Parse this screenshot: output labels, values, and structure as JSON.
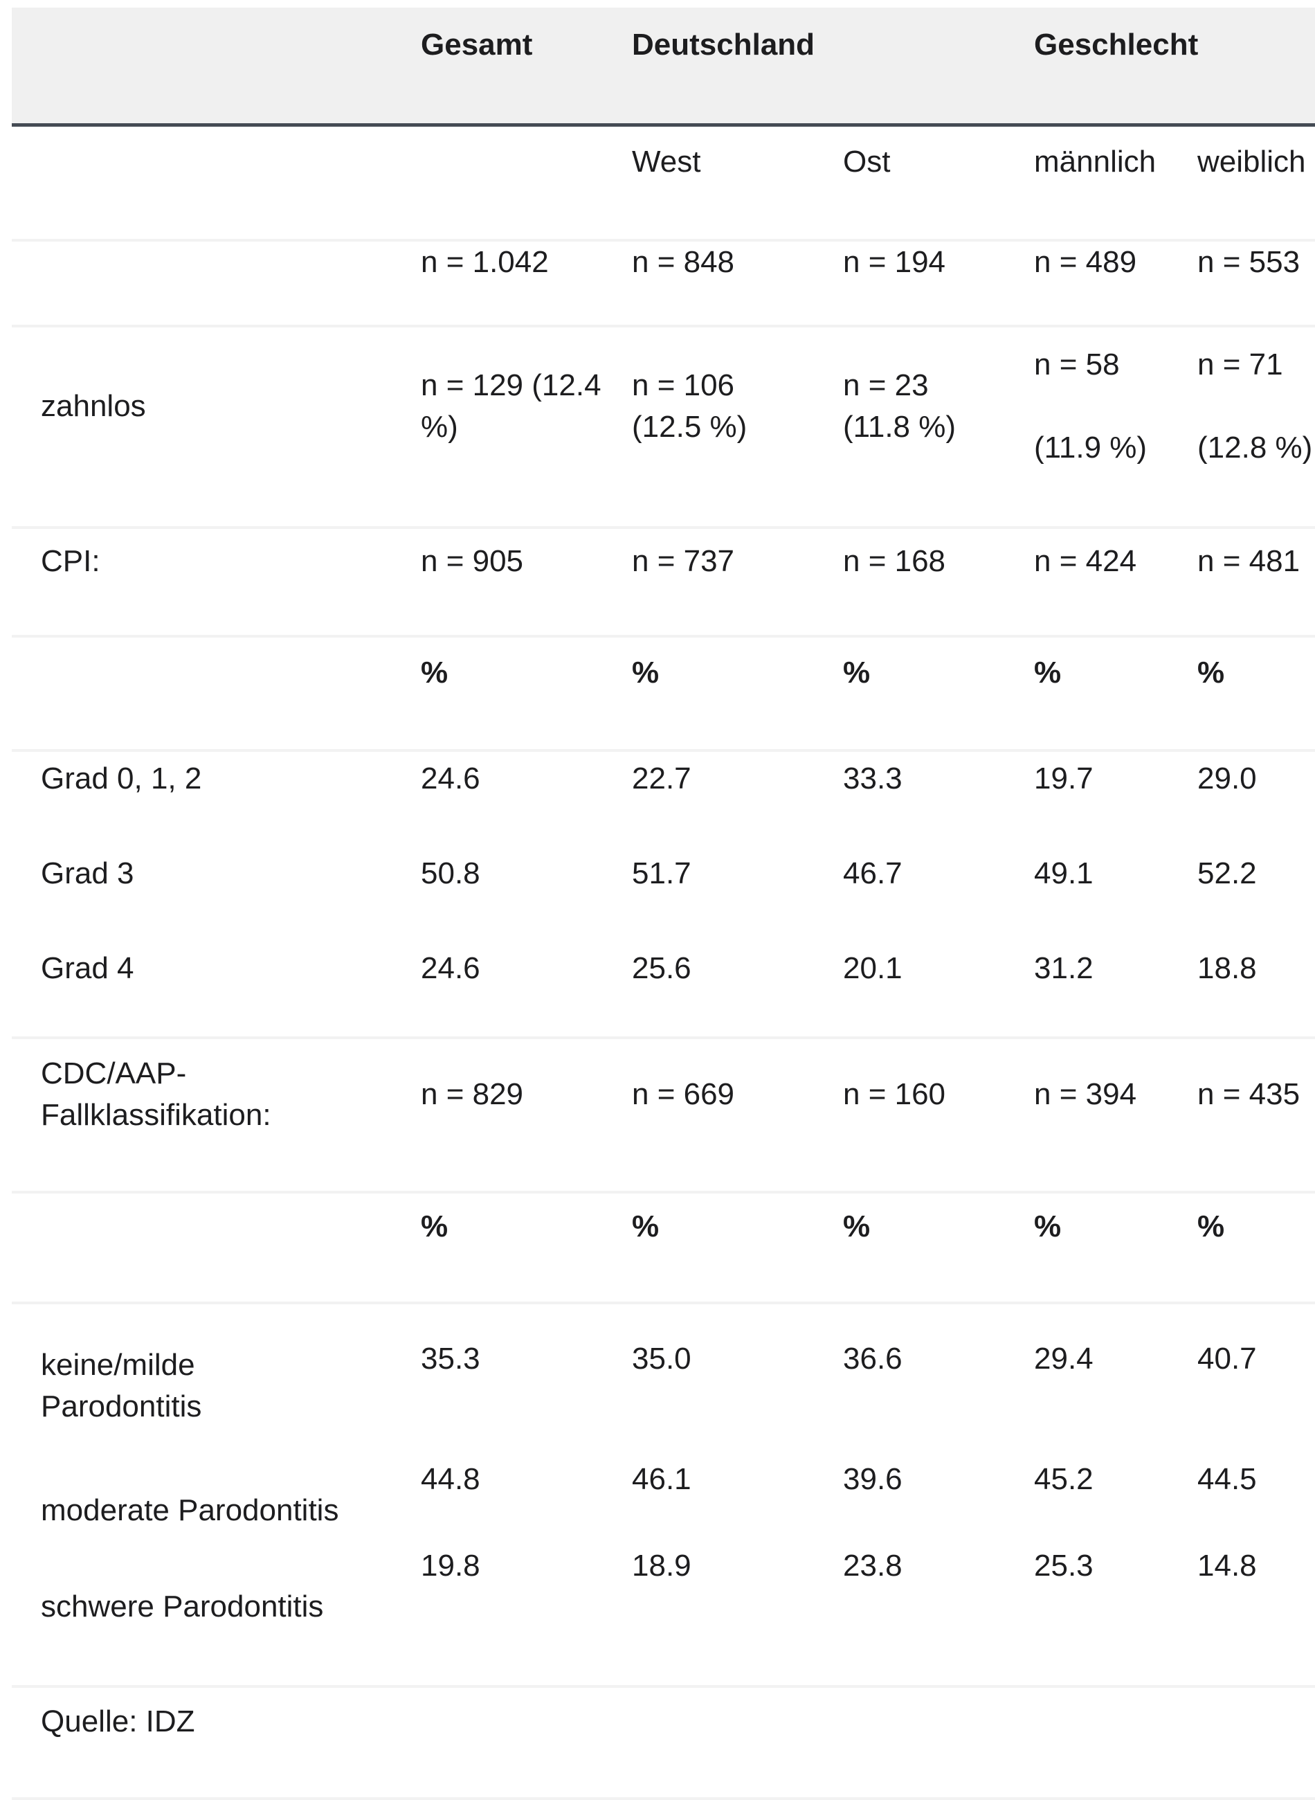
{
  "colors": {
    "header_bg": "#f0f0f0",
    "header_rule": "#444b54",
    "divider": "#f2f2f2",
    "text": "#1d1d1f"
  },
  "table": {
    "group_headers": [
      {
        "id": "gesamt",
        "label": "Gesamt"
      },
      {
        "id": "deutschland",
        "label": "Deutschland"
      },
      {
        "id": "geschlecht",
        "label": "Geschlecht"
      }
    ],
    "sub_headers": [
      "West",
      "Ost",
      "männlich",
      "weiblich"
    ],
    "rows": [
      {
        "id": "n-total",
        "label": "",
        "divider": true,
        "cells": [
          "n = 1.042",
          "n = 848",
          "n = 194",
          "n = 489",
          "n = 553"
        ]
      },
      {
        "id": "zahnlos",
        "label": "zahnlos",
        "divider": true,
        "cells": [
          [
            "n = 129 (12.4",
            "%)"
          ],
          [
            "n = 106",
            "(12.5 %)"
          ],
          [
            "n = 23",
            "(11.8 %)"
          ],
          {
            "paras": [
              "n = 58",
              "(11.9 %)"
            ]
          },
          {
            "paras": [
              "n = 71",
              "(12.8 %)"
            ]
          }
        ]
      },
      {
        "id": "cpi",
        "label": "CPI:",
        "divider": true,
        "cells": [
          "n = 905",
          "n = 737",
          "n = 168",
          "n = 424",
          "n = 481"
        ]
      },
      {
        "id": "pct1",
        "label": "",
        "divider": true,
        "cells": [
          "%",
          "%",
          "%",
          "%",
          "%"
        ]
      },
      {
        "id": "grad012",
        "label": "Grad 0, 1, 2",
        "divider": false,
        "cells": [
          "24.6",
          "22.7",
          "33.3",
          "19.7",
          "29.0"
        ]
      },
      {
        "id": "grad3",
        "label": "Grad 3",
        "divider": false,
        "cells": [
          "50.8",
          "51.7",
          "46.7",
          "49.1",
          "52.2"
        ]
      },
      {
        "id": "grad4",
        "label": "Grad 4",
        "divider": true,
        "cells": [
          "24.6",
          "25.6",
          "20.1",
          "31.2",
          "18.8"
        ]
      },
      {
        "id": "cdc",
        "label": [
          "CDC/AAP-",
          "Fallklassifikation:"
        ],
        "divider": true,
        "cells": [
          "n = 829",
          "n = 669",
          "n = 160",
          "n = 394",
          "n = 435"
        ]
      },
      {
        "id": "pct2",
        "label": "",
        "divider": true,
        "cells": [
          "%",
          "%",
          "%",
          "%",
          "%"
        ]
      },
      {
        "id": "keine",
        "label": [
          "keine/milde",
          "Parodontitis"
        ],
        "divider": false,
        "cells": [
          "35.3",
          "35.0",
          "36.6",
          "29.4",
          "40.7"
        ]
      },
      {
        "id": "moderate",
        "label": "moderate Parodontitis",
        "divider": false,
        "cells": [
          "44.8",
          "46.1",
          "39.6",
          "45.2",
          "44.5"
        ]
      },
      {
        "id": "schwere",
        "label": "schwere Parodontitis",
        "divider": true,
        "cells": [
          "19.8",
          "18.9",
          "23.8",
          "25.3",
          "14.8"
        ]
      }
    ],
    "footer": "Quelle: IDZ"
  }
}
